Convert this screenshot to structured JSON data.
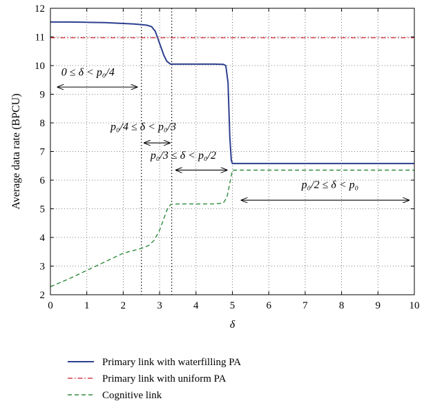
{
  "chart_data": {
    "type": "line",
    "xlabel": "δ",
    "ylabel": "Average data rate (BPCU)",
    "xlim": [
      0,
      10
    ],
    "ylim": [
      2,
      12
    ],
    "xticks": [
      0,
      1,
      2,
      3,
      4,
      5,
      6,
      7,
      8,
      9,
      10
    ],
    "yticks": [
      2,
      3,
      4,
      5,
      6,
      7,
      8,
      9,
      10,
      11,
      12
    ],
    "grid": true,
    "legend_position": "below",
    "series": [
      {
        "name": "Primary link with waterfilling PA",
        "color": "#2b3f8f",
        "style": "solid",
        "points": [
          [
            0,
            11.52
          ],
          [
            0.5,
            11.52
          ],
          [
            1,
            11.51
          ],
          [
            1.5,
            11.5
          ],
          [
            2,
            11.47
          ],
          [
            2.3,
            11.45
          ],
          [
            2.5,
            11.43
          ],
          [
            2.65,
            11.41
          ],
          [
            2.78,
            11.36
          ],
          [
            2.88,
            11.2
          ],
          [
            2.95,
            10.95
          ],
          [
            3.05,
            10.6
          ],
          [
            3.12,
            10.35
          ],
          [
            3.2,
            10.15
          ],
          [
            3.3,
            10.05
          ],
          [
            3.5,
            10.05
          ],
          [
            4,
            10.05
          ],
          [
            4.5,
            10.05
          ],
          [
            4.75,
            10.04
          ],
          [
            4.82,
            10.0
          ],
          [
            4.88,
            9.4
          ],
          [
            4.93,
            7.5
          ],
          [
            4.97,
            6.7
          ],
          [
            5,
            6.58
          ],
          [
            6,
            6.58
          ],
          [
            7,
            6.58
          ],
          [
            8,
            6.58
          ],
          [
            9,
            6.58
          ],
          [
            10,
            6.58
          ]
        ]
      },
      {
        "name": "Primary link with uniform PA",
        "color": "#d63c4a",
        "style": "dashdot",
        "points": [
          [
            0,
            10.97
          ],
          [
            10,
            10.97
          ]
        ]
      },
      {
        "name": "Cognitive link",
        "color": "#2e8b3a",
        "style": "dashed",
        "points": [
          [
            0,
            2.28
          ],
          [
            0.5,
            2.55
          ],
          [
            1,
            2.85
          ],
          [
            1.5,
            3.15
          ],
          [
            2,
            3.45
          ],
          [
            2.3,
            3.55
          ],
          [
            2.5,
            3.62
          ],
          [
            2.7,
            3.72
          ],
          [
            2.85,
            3.9
          ],
          [
            3.0,
            4.25
          ],
          [
            3.1,
            4.6
          ],
          [
            3.2,
            4.95
          ],
          [
            3.3,
            5.15
          ],
          [
            3.5,
            5.17
          ],
          [
            4,
            5.17
          ],
          [
            4.5,
            5.17
          ],
          [
            4.75,
            5.2
          ],
          [
            4.85,
            5.4
          ],
          [
            4.93,
            5.9
          ],
          [
            5,
            6.35
          ],
          [
            6,
            6.35
          ],
          [
            7,
            6.35
          ],
          [
            8,
            6.35
          ],
          [
            9,
            6.35
          ],
          [
            10,
            6.35
          ]
        ]
      }
    ],
    "vlines": [
      2.5,
      3.333
    ],
    "annotations": [
      {
        "text": "0 ≤ δ < p₀/4",
        "x": 0.3,
        "y": 9.65,
        "arrow": [
          0.2,
          2.38
        ],
        "arrow_y": 9.25
      },
      {
        "text": "p₀/4 ≤ δ < p₀/3",
        "x": 1.65,
        "y": 7.75,
        "arrow": [
          2.58,
          3.28
        ],
        "arrow_y": 7.3
      },
      {
        "text": "p₀/3 ≤ δ < p₀/2",
        "x": 2.75,
        "y": 6.75,
        "arrow": [
          3.45,
          4.85
        ],
        "arrow_y": 6.35
      },
      {
        "text": "p₀/2 ≤ δ < p₀",
        "x": 6.9,
        "y": 5.72,
        "arrow": [
          5.25,
          9.85
        ],
        "arrow_y": 5.3
      }
    ]
  }
}
